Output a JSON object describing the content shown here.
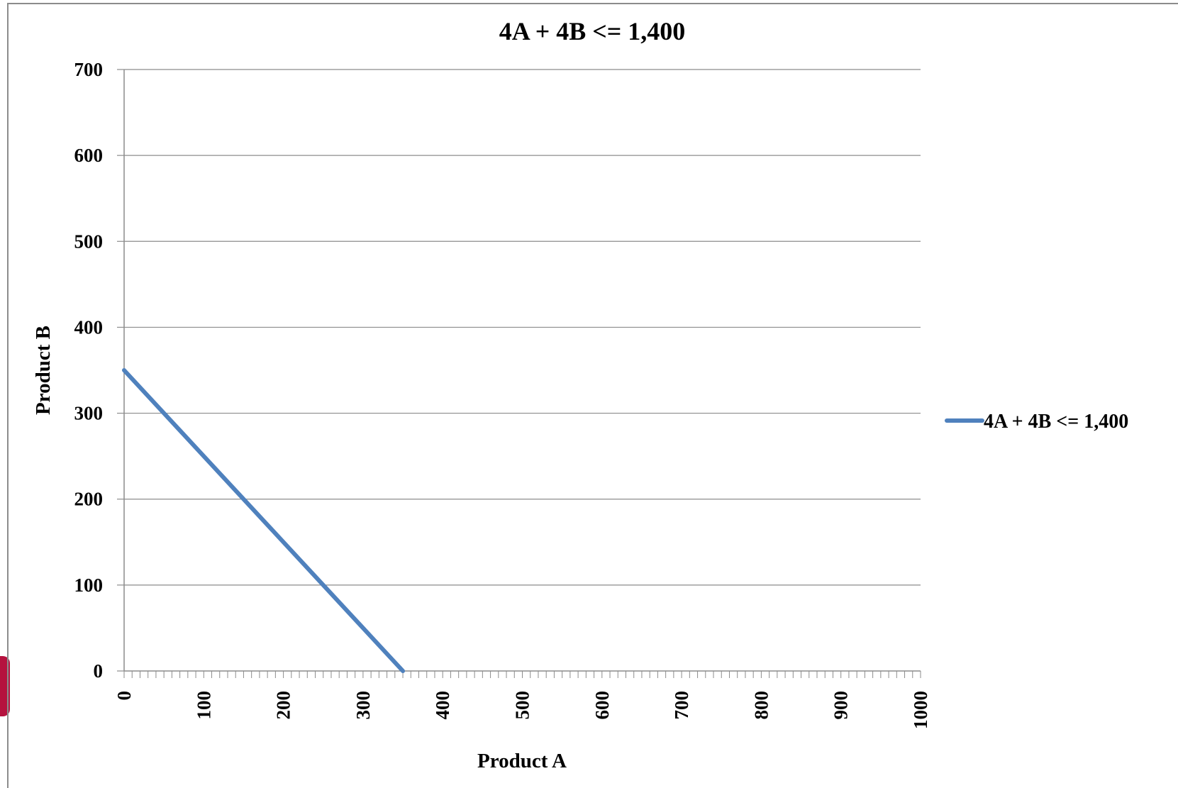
{
  "chart_data": {
    "type": "line",
    "title": "4A + 4B <= 1,400",
    "xlabel": "Product A",
    "ylabel": "Product B",
    "xlim": [
      0,
      1000
    ],
    "ylim": [
      0,
      700
    ],
    "x_ticks": [
      "0",
      "100",
      "200",
      "300",
      "400",
      "500",
      "600",
      "700",
      "800",
      "900",
      "1000"
    ],
    "y_ticks": [
      "0",
      "100",
      "200",
      "300",
      "400",
      "500",
      "600",
      "700"
    ],
    "grid": "horizontal",
    "legend_position": "right",
    "series": [
      {
        "name": "4A + 4B <= 1,400",
        "color": "#4f81bd",
        "points": [
          {
            "x": 0,
            "y": 350
          },
          {
            "x": 350,
            "y": 0
          }
        ]
      }
    ]
  }
}
